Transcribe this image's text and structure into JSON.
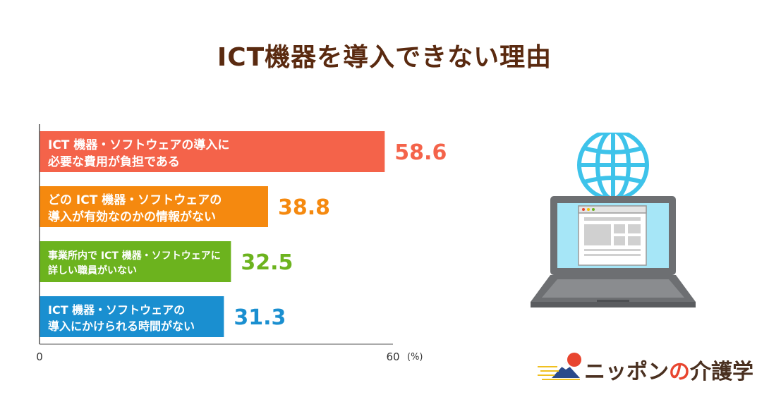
{
  "title": "ICT機器を導入できない理由",
  "chart_data": {
    "type": "bar",
    "orientation": "horizontal",
    "categories": [
      [
        "ICT 機器・ソフトウェアの導入に",
        "必要な費用が負担である"
      ],
      [
        "どの ICT 機器・ソフトウェアの",
        "導入が有効なのかの情報がない"
      ],
      [
        "事業所内で ICT 機器・ソフトウェアに",
        "詳しい職員がいない"
      ],
      [
        "ICT 機器・ソフトウェアの",
        "導入にかけられる時間がない"
      ]
    ],
    "values": [
      58.6,
      38.8,
      32.5,
      31.3
    ],
    "value_labels": [
      "58.6",
      "38.8",
      "32.5",
      "31.3"
    ],
    "colors": [
      "#f4634a",
      "#f5890f",
      "#6cb31e",
      "#1a8fd0"
    ],
    "xlim": [
      0,
      60
    ],
    "xticks": [
      "0",
      "60"
    ],
    "unit_label": "(%)"
  },
  "logo": {
    "text_before": "ニッポン",
    "text_no": "の",
    "text_after": "介護学"
  }
}
